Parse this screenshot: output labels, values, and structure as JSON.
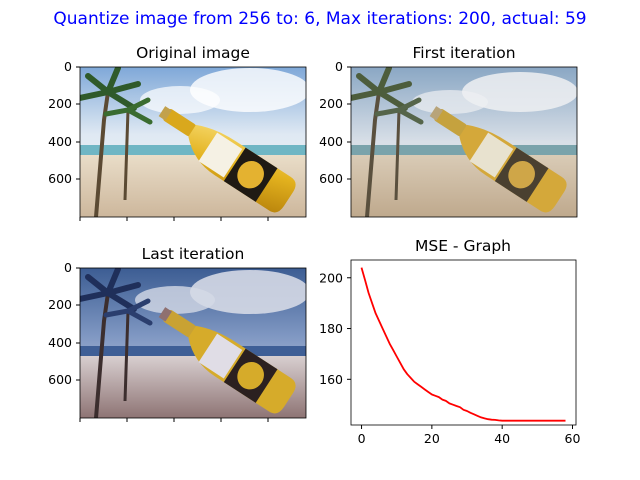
{
  "figure": {
    "suptitle": "Quantize image from 256 to: 6, Max iterations: 200, actual: 59"
  },
  "panels": {
    "original": {
      "title": "Original image",
      "yticks": [
        "0",
        "200",
        "400",
        "600"
      ]
    },
    "first": {
      "title": "First iteration",
      "yticks": [
        "0",
        "200",
        "400",
        "600"
      ]
    },
    "last": {
      "title": "Last iteration",
      "yticks": [
        "0",
        "200",
        "400",
        "600"
      ]
    }
  },
  "chart_data": {
    "type": "line",
    "title": "MSE - Graph",
    "xlabel": "",
    "ylabel": "",
    "xlim": [
      -3,
      61
    ],
    "ylim": [
      142,
      207
    ],
    "xticks": [
      0,
      20,
      40,
      60
    ],
    "yticks": [
      160,
      180,
      200
    ],
    "grid": false,
    "series": [
      {
        "name": "",
        "color": "#ff0000",
        "x": [
          0,
          1,
          2,
          3,
          4,
          5,
          6,
          7,
          8,
          9,
          10,
          11,
          12,
          13,
          14,
          15,
          16,
          17,
          18,
          19,
          20,
          21,
          22,
          23,
          24,
          25,
          26,
          27,
          28,
          29,
          30,
          31,
          32,
          33,
          34,
          35,
          36,
          37,
          38,
          39,
          40,
          41,
          42,
          43,
          44,
          45,
          46,
          47,
          48,
          49,
          50,
          51,
          52,
          53,
          54,
          55,
          56,
          57,
          58
        ],
        "y": [
          204,
          199,
          194,
          190,
          186,
          183,
          180,
          177,
          174,
          171.5,
          169,
          166.5,
          164,
          162,
          160.5,
          159,
          158,
          157,
          156,
          155,
          154,
          153.5,
          153,
          152,
          151.5,
          150.5,
          150,
          149.5,
          149,
          148,
          147.5,
          146.8,
          146.2,
          145.6,
          145,
          144.6,
          144.3,
          144.1,
          144,
          143.8,
          143.7,
          143.7,
          143.7,
          143.7,
          143.7,
          143.7,
          143.7,
          143.7,
          143.7,
          143.7,
          143.7,
          143.7,
          143.7,
          143.7,
          143.7,
          143.7,
          143.7,
          143.7,
          143.7
        ]
      }
    ]
  }
}
